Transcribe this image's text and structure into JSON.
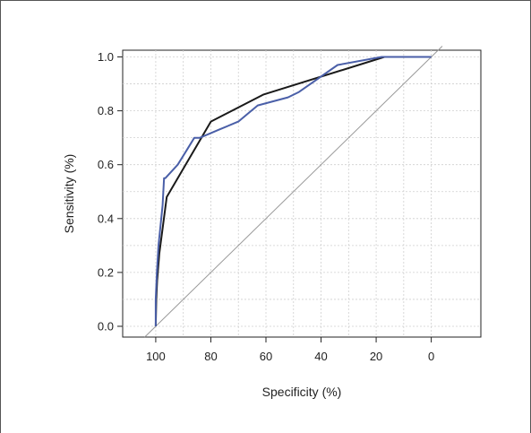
{
  "chart_data": {
    "type": "line",
    "title": "",
    "xlabel": "Specificity (%)",
    "ylabel": "Sensitivity (%)",
    "x_reversed": true,
    "xlim": [
      -18,
      112
    ],
    "ylim": [
      -0.04,
      1.025
    ],
    "grid": true,
    "x_ticks": [
      100,
      80,
      60,
      40,
      20,
      0
    ],
    "x_tick_labels": [
      "100",
      "80",
      "60",
      "40",
      "20",
      "0"
    ],
    "y_ticks": [
      0.0,
      0.2,
      0.4,
      0.6,
      0.8,
      1.0
    ],
    "y_tick_labels": [
      "0.0",
      "0.2",
      "0.4",
      "0.6",
      "0.8",
      "1.0"
    ],
    "reference_line": {
      "x": [
        104,
        -4
      ],
      "y": [
        -0.04,
        1.04
      ],
      "color": "#999999"
    },
    "series": [
      {
        "color": "#1a1a1a",
        "x": [
          100,
          99.8,
          99.5,
          98.7,
          96,
          80,
          61,
          17,
          0
        ],
        "y": [
          0.0,
          0.1,
          0.17,
          0.27,
          0.48,
          0.76,
          0.86,
          1.0,
          1.0
        ]
      },
      {
        "color": "#4a5fa8",
        "x": [
          100,
          100,
          99.6,
          99,
          97.5,
          97,
          96.5,
          92,
          89,
          86,
          84,
          77,
          70,
          63,
          52,
          48,
          34,
          18,
          0
        ],
        "y": [
          0.0,
          0.1,
          0.2,
          0.3,
          0.45,
          0.55,
          0.55,
          0.6,
          0.65,
          0.7,
          0.7,
          0.73,
          0.76,
          0.82,
          0.85,
          0.87,
          0.97,
          1.0,
          1.0
        ]
      }
    ]
  }
}
